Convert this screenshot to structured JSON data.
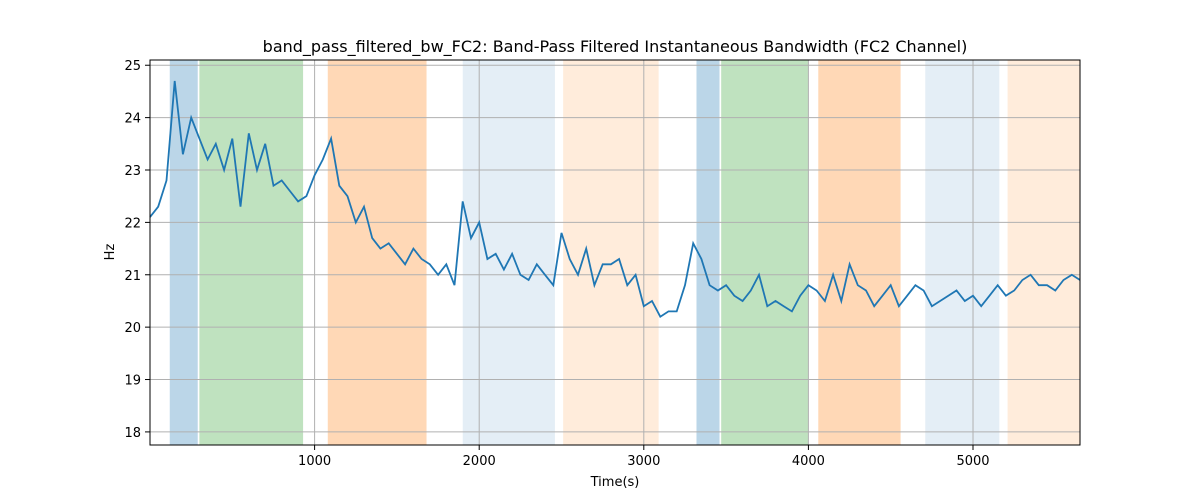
{
  "chart_data": {
    "type": "line",
    "title": "band_pass_filtered_bw_FC2: Band-Pass Filtered Instantaneous Bandwidth (FC2 Channel)",
    "xlabel": "Time(s)",
    "ylabel": "Hz",
    "xlim": [
      0,
      5650
    ],
    "ylim": [
      17.75,
      25.1
    ],
    "grid": true,
    "xticks": [
      1000,
      2000,
      3000,
      4000,
      5000
    ],
    "yticks": [
      18,
      19,
      20,
      21,
      22,
      23,
      24,
      25
    ],
    "bands": [
      {
        "start": 120,
        "end": 290,
        "color": "#1f77b4",
        "alpha": 0.3
      },
      {
        "start": 300,
        "end": 930,
        "color": "#2ca02c",
        "alpha": 0.3
      },
      {
        "start": 1080,
        "end": 1680,
        "color": "#ff7f0e",
        "alpha": 0.3
      },
      {
        "start": 1900,
        "end": 2460,
        "color": "#1f77b4",
        "alpha": 0.12
      },
      {
        "start": 2510,
        "end": 3090,
        "color": "#ff7f0e",
        "alpha": 0.15
      },
      {
        "start": 3320,
        "end": 3460,
        "color": "#1f77b4",
        "alpha": 0.3
      },
      {
        "start": 3470,
        "end": 4000,
        "color": "#2ca02c",
        "alpha": 0.3
      },
      {
        "start": 4060,
        "end": 4560,
        "color": "#ff7f0e",
        "alpha": 0.3
      },
      {
        "start": 4710,
        "end": 5160,
        "color": "#1f77b4",
        "alpha": 0.12
      },
      {
        "start": 5210,
        "end": 5650,
        "color": "#ff7f0e",
        "alpha": 0.15
      }
    ],
    "series": [
      {
        "color": "#1f77b4",
        "x": [
          0,
          50,
          100,
          150,
          200,
          250,
          300,
          350,
          400,
          450,
          500,
          550,
          600,
          650,
          700,
          750,
          800,
          850,
          900,
          950,
          1000,
          1050,
          1100,
          1150,
          1200,
          1250,
          1300,
          1350,
          1400,
          1450,
          1500,
          1550,
          1600,
          1650,
          1700,
          1750,
          1800,
          1850,
          1900,
          1950,
          2000,
          2050,
          2100,
          2150,
          2200,
          2250,
          2300,
          2350,
          2400,
          2450,
          2500,
          2550,
          2600,
          2650,
          2700,
          2750,
          2800,
          2850,
          2900,
          2950,
          3000,
          3050,
          3100,
          3150,
          3200,
          3250,
          3300,
          3350,
          3400,
          3450,
          3500,
          3550,
          3600,
          3650,
          3700,
          3750,
          3800,
          3850,
          3900,
          3950,
          4000,
          4050,
          4100,
          4150,
          4200,
          4250,
          4300,
          4350,
          4400,
          4450,
          4500,
          4550,
          4600,
          4650,
          4700,
          4750,
          4800,
          4850,
          4900,
          4950,
          5000,
          5050,
          5100,
          5150,
          5200,
          5250,
          5300,
          5350,
          5400,
          5450,
          5500,
          5550,
          5600,
          5650
        ],
        "values": [
          22.1,
          22.3,
          22.8,
          24.7,
          23.3,
          24.0,
          23.6,
          23.2,
          23.5,
          23.0,
          23.6,
          22.3,
          23.7,
          23.0,
          23.5,
          22.7,
          22.8,
          22.6,
          22.4,
          22.5,
          22.9,
          23.2,
          23.6,
          22.7,
          22.5,
          22.0,
          22.3,
          21.7,
          21.5,
          21.6,
          21.4,
          21.2,
          21.5,
          21.3,
          21.2,
          21.0,
          21.2,
          20.8,
          22.4,
          21.7,
          22.0,
          21.3,
          21.4,
          21.1,
          21.4,
          21.0,
          20.9,
          21.2,
          21.0,
          20.8,
          21.8,
          21.3,
          21.0,
          21.5,
          20.8,
          21.2,
          21.2,
          21.3,
          20.8,
          21.0,
          20.4,
          20.5,
          20.2,
          20.3,
          20.3,
          20.8,
          21.6,
          21.3,
          20.8,
          20.7,
          20.8,
          20.6,
          20.5,
          20.7,
          21.0,
          20.4,
          20.5,
          20.4,
          20.3,
          20.6,
          20.8,
          20.7,
          20.5,
          21.0,
          20.5,
          21.2,
          20.8,
          20.7,
          20.4,
          20.6,
          20.8,
          20.4,
          20.6,
          20.8,
          20.7,
          20.4,
          20.5,
          20.6,
          20.7,
          20.5,
          20.6,
          20.4,
          20.6,
          20.8,
          20.6,
          20.7,
          20.9,
          21.0,
          20.8,
          20.8,
          20.7,
          20.9,
          21.0,
          20.9
        ]
      }
    ]
  }
}
